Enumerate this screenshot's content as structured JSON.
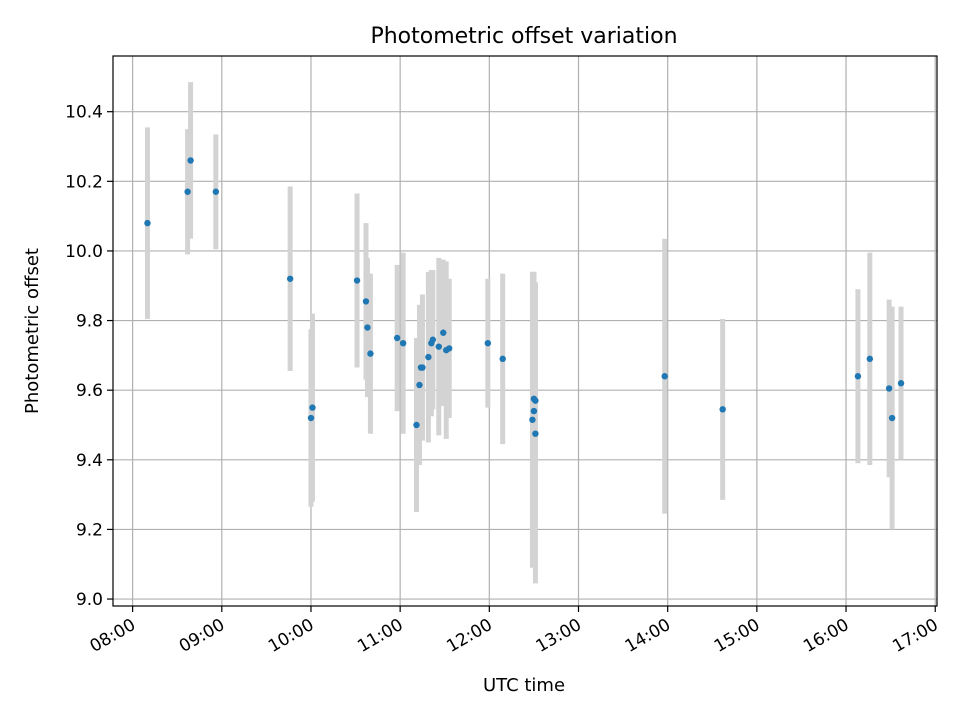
{
  "chart_data": {
    "type": "scatter",
    "title": "Photometric offset variation",
    "xlabel": "UTC time",
    "ylabel": "Photometric offset",
    "x_tick_labels": [
      "08:00",
      "09:00",
      "10:00",
      "11:00",
      "12:00",
      "13:00",
      "14:00",
      "15:00",
      "16:00",
      "17:00"
    ],
    "x_tick_hours": [
      8,
      9,
      10,
      11,
      12,
      13,
      14,
      15,
      16,
      17
    ],
    "xlim_hours": [
      7.78,
      17.02
    ],
    "y_ticks": [
      9.0,
      9.2,
      9.4,
      9.6,
      9.8,
      10.0,
      10.2,
      10.4
    ],
    "y_tick_labels": [
      "9.0",
      "9.2",
      "9.4",
      "9.6",
      "9.8",
      "10.0",
      "10.2",
      "10.4"
    ],
    "ylim": [
      8.98,
      10.56
    ],
    "grid": true,
    "marker_color": "#1f77b4",
    "errorbar_color": "#d3d3d3",
    "points": [
      {
        "t": "08:10",
        "y": 10.08,
        "err": 0.275
      },
      {
        "t": "08:37",
        "y": 10.17,
        "err": 0.18
      },
      {
        "t": "08:39",
        "y": 10.26,
        "err": 0.225
      },
      {
        "t": "08:56",
        "y": 10.17,
        "err": 0.165
      },
      {
        "t": "09:46",
        "y": 9.92,
        "err": 0.265
      },
      {
        "t": "10:00",
        "y": 9.52,
        "err": 0.255
      },
      {
        "t": "10:01",
        "y": 9.55,
        "err": 0.27
      },
      {
        "t": "10:31",
        "y": 9.915,
        "err": 0.25
      },
      {
        "t": "10:37",
        "y": 9.855,
        "err": 0.225
      },
      {
        "t": "10:38",
        "y": 9.78,
        "err": 0.2
      },
      {
        "t": "10:40",
        "y": 9.705,
        "err": 0.23
      },
      {
        "t": "10:58",
        "y": 9.75,
        "err": 0.21
      },
      {
        "t": "11:02",
        "y": 9.735,
        "err": 0.26
      },
      {
        "t": "11:11",
        "y": 9.5,
        "err": 0.25
      },
      {
        "t": "11:13",
        "y": 9.615,
        "err": 0.23
      },
      {
        "t": "11:14",
        "y": 9.665,
        "err": 0.18
      },
      {
        "t": "11:15",
        "y": 9.665,
        "err": 0.21
      },
      {
        "t": "11:19",
        "y": 9.695,
        "err": 0.245
      },
      {
        "t": "11:21",
        "y": 9.735,
        "err": 0.21
      },
      {
        "t": "11:22",
        "y": 9.745,
        "err": 0.2
      },
      {
        "t": "11:26",
        "y": 9.725,
        "err": 0.255
      },
      {
        "t": "11:29",
        "y": 9.765,
        "err": 0.21
      },
      {
        "t": "11:31",
        "y": 9.715,
        "err": 0.255
      },
      {
        "t": "11:33",
        "y": 9.72,
        "err": 0.2
      },
      {
        "t": "11:59",
        "y": 9.735,
        "err": 0.185
      },
      {
        "t": "12:09",
        "y": 9.69,
        "err": 0.245
      },
      {
        "t": "12:29",
        "y": 9.515,
        "err": 0.425
      },
      {
        "t": "12:30",
        "y": 9.54,
        "err": 0.4
      },
      {
        "t": "12:30",
        "y": 9.575,
        "err": 0.365
      },
      {
        "t": "12:31",
        "y": 9.57,
        "err": 0.34
      },
      {
        "t": "12:31",
        "y": 9.475,
        "err": 0.43
      },
      {
        "t": "13:58",
        "y": 9.64,
        "err": 0.395
      },
      {
        "t": "14:37",
        "y": 9.545,
        "err": 0.26
      },
      {
        "t": "16:08",
        "y": 9.64,
        "err": 0.25
      },
      {
        "t": "16:16",
        "y": 9.69,
        "err": 0.305
      },
      {
        "t": "16:29",
        "y": 9.605,
        "err": 0.255
      },
      {
        "t": "16:31",
        "y": 9.52,
        "err": 0.32
      },
      {
        "t": "16:37",
        "y": 9.62,
        "err": 0.22
      }
    ]
  }
}
